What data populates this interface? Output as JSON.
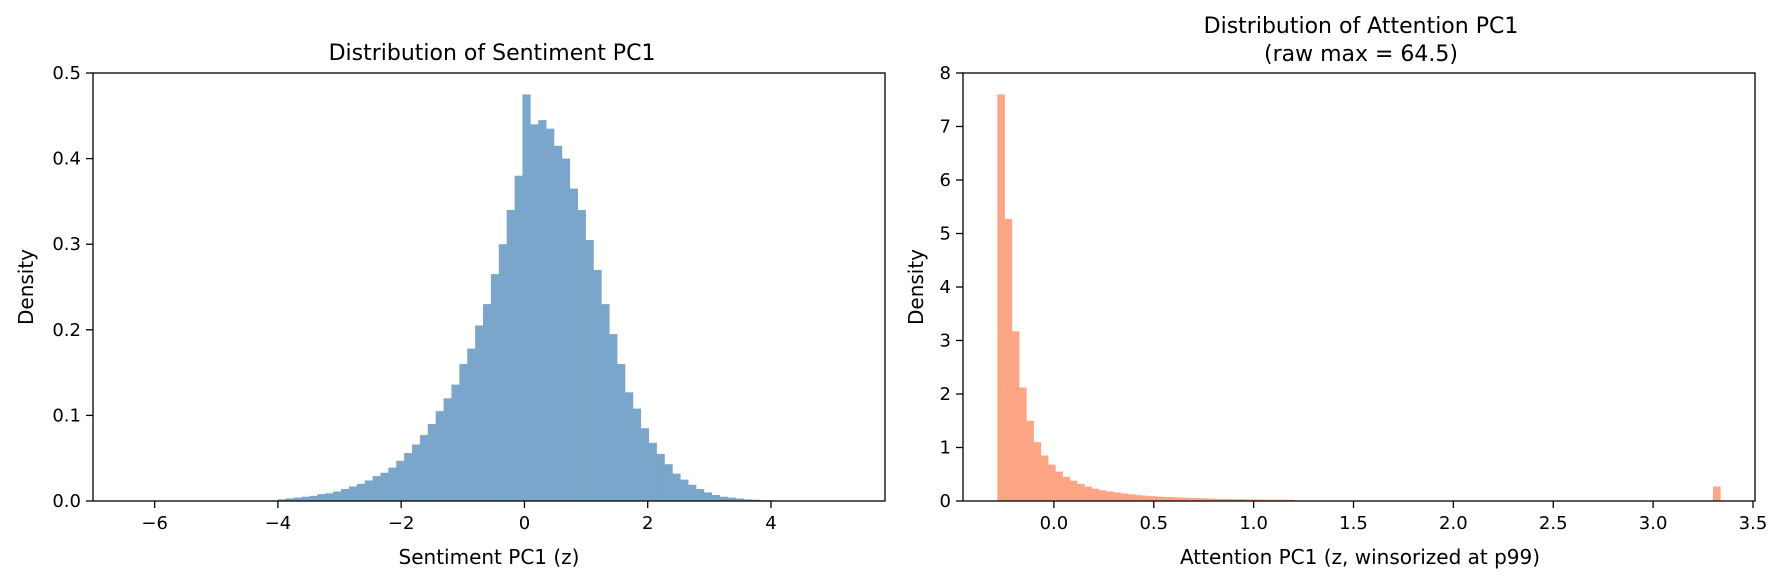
{
  "chart_data": [
    {
      "type": "bar",
      "title": "Distribution of Sentiment PC1",
      "subtitle": "",
      "xlabel": "Sentiment PC1 (z)",
      "ylabel": "Density",
      "xlim": [
        -7.0,
        5.85
      ],
      "ylim": [
        0,
        0.5
      ],
      "xticks": [
        -6,
        -4,
        -2,
        0,
        2,
        4
      ],
      "xtick_labels": [
        "−6",
        "−4",
        "−2",
        "0",
        "2",
        "4"
      ],
      "yticks": [
        0.0,
        0.1,
        0.2,
        0.3,
        0.4,
        0.5
      ],
      "ytick_labels": [
        "0.0",
        "0.1",
        "0.2",
        "0.3",
        "0.4",
        "0.5"
      ],
      "color": "#7ba6cb",
      "grid": false,
      "legend": "none",
      "bins": {
        "start": -4.0,
        "width": 0.128,
        "values": [
          0.002,
          0.003,
          0.004,
          0.005,
          0.006,
          0.008,
          0.009,
          0.011,
          0.014,
          0.017,
          0.02,
          0.024,
          0.029,
          0.033,
          0.039,
          0.047,
          0.056,
          0.066,
          0.077,
          0.09,
          0.105,
          0.12,
          0.136,
          0.16,
          0.178,
          0.205,
          0.23,
          0.265,
          0.3,
          0.34,
          0.38,
          0.475,
          0.44,
          0.445,
          0.435,
          0.415,
          0.4,
          0.365,
          0.34,
          0.305,
          0.27,
          0.23,
          0.195,
          0.16,
          0.127,
          0.108,
          0.085,
          0.068,
          0.055,
          0.043,
          0.032,
          0.025,
          0.019,
          0.014,
          0.01,
          0.007,
          0.005,
          0.004,
          0.003,
          0.002,
          0.0015,
          0.001,
          0.0008,
          0.0005,
          0.0003
        ]
      }
    },
    {
      "type": "bar",
      "title": "Distribution of Attention PC1",
      "subtitle": "(raw max = 64.5)",
      "xlabel": "Attention PC1 (z, winsorized at p99)",
      "ylabel": "Density",
      "xlim": [
        -0.455,
        3.51
      ],
      "ylim": [
        0,
        8
      ],
      "xticks": [
        0.0,
        0.5,
        1.0,
        1.5,
        2.0,
        2.5,
        3.0,
        3.5
      ],
      "xtick_labels": [
        "0.0",
        "0.5",
        "1.0",
        "1.5",
        "2.0",
        "2.5",
        "3.0",
        "3.5"
      ],
      "yticks": [
        0,
        1,
        2,
        3,
        4,
        5,
        6,
        7,
        8
      ],
      "ytick_labels": [
        "0",
        "1",
        "2",
        "3",
        "4",
        "5",
        "6",
        "7",
        "8"
      ],
      "color": "#fda584",
      "grid": false,
      "legend": "none",
      "bins": {
        "start": -0.283,
        "width": 0.0363,
        "values": [
          7.6,
          5.27,
          3.17,
          2.12,
          1.5,
          1.1,
          0.85,
          0.68,
          0.55,
          0.45,
          0.38,
          0.32,
          0.27,
          0.23,
          0.2,
          0.18,
          0.16,
          0.14,
          0.125,
          0.11,
          0.1,
          0.09,
          0.08,
          0.075,
          0.07,
          0.065,
          0.06,
          0.055,
          0.05,
          0.045,
          0.04,
          0.04,
          0.035,
          0.035,
          0.03,
          0.03,
          0.028,
          0.026,
          0.025,
          0.024,
          0.022
        ]
      },
      "outlier_bin": {
        "x": 3.3,
        "width": 0.0363,
        "value": 0.27
      }
    }
  ]
}
